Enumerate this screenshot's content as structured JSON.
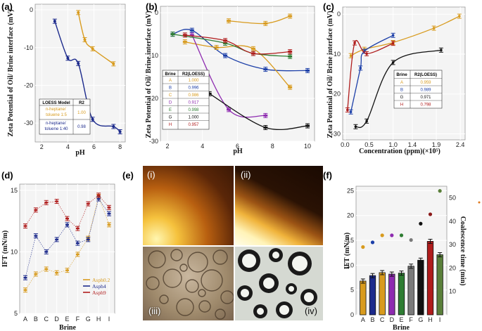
{
  "figure_letters": {
    "a": "(a)",
    "b": "(b)",
    "c": "(c)",
    "d": "(d)",
    "e": "(e)",
    "f": "(f)"
  },
  "micrograph_labels": {
    "i": "(i)",
    "ii": "(ii)",
    "iii": "(iii)",
    "iv": "(iv)"
  },
  "colors": {
    "orange": "#d89b1e",
    "navy": "#1c2a8c",
    "crimson": "#b01c1c",
    "green": "#2e7d32",
    "purple": "#8e2bb0",
    "black": "#111111",
    "blue": "#1c3fa8",
    "gray": "#7a7a7a",
    "light_blue": "#1f6fd6",
    "olive": "#5a7f3a",
    "dark_red": "#8b1a1a"
  },
  "chart_data": [
    {
      "id": "a",
      "type": "line",
      "ylabel": "Zeta Potential of Oil/ Brine interface (mV)",
      "xlabel": "pH",
      "xlim": [
        1.5,
        8.4
      ],
      "ylim": [
        -35,
        1.5
      ],
      "xticks": [
        "2",
        "4",
        "6",
        "8"
      ],
      "yticks": [
        "0",
        "-10",
        "-20",
        "-30"
      ],
      "legend_headers": [
        "LOESS Model",
        "R2"
      ],
      "series": [
        {
          "name": "n-heptane/ toluene 1:5",
          "r2": "1.00",
          "color": "orange",
          "x": [
            4.8,
            5.3,
            5.9,
            7.5
          ],
          "y": [
            -0.7,
            -7.9,
            -10.3,
            -14.3
          ]
        },
        {
          "name": "n-heptane/ toluene 1:40",
          "r2": "0.98",
          "color": "navy",
          "x": [
            3.0,
            4.0,
            4.8,
            5.9,
            7.5,
            8.0
          ],
          "y": [
            -3.0,
            -12.8,
            -14.2,
            -29.0,
            -30.9,
            -32.3
          ]
        }
      ]
    },
    {
      "id": "b",
      "type": "line",
      "ylabel": "Zeta Potential of Oil/ Brine interface (mV)",
      "xlabel": "pH",
      "xlim": [
        1.6,
        10.4
      ],
      "ylim": [
        -30,
        1.5
      ],
      "xticks": [
        "2",
        "4",
        "6",
        "8",
        "10"
      ],
      "yticks": [
        "0",
        "-10",
        "-20",
        "-30"
      ],
      "legend_headers": [
        "Brine",
        "R2(LOESS)"
      ],
      "series": [
        {
          "name": "A",
          "r2": "1.000",
          "color": "orange",
          "x": [
            5.5,
            7.6,
            9.0
          ],
          "y": [
            -1.9,
            -2.5,
            -0.8
          ]
        },
        {
          "name": "B",
          "r2": "0.996",
          "color": "blue",
          "x": [
            2.3,
            3.4,
            5.3,
            7.6,
            10.0
          ],
          "y": [
            -5.0,
            -4.1,
            -10.0,
            -13.2,
            -13.5
          ]
        },
        {
          "name": "C",
          "r2": "0.986",
          "color": "orange",
          "x": [
            3.0,
            4.8,
            6.9,
            9.0
          ],
          "y": [
            -6.8,
            -8.1,
            -8.4,
            -17.4
          ]
        },
        {
          "name": "D",
          "r2": "0.917",
          "color": "purple",
          "x": [
            3.4,
            5.5,
            7.6
          ],
          "y": [
            -5.2,
            -22.6,
            -24.0
          ]
        },
        {
          "name": "E",
          "r2": "0.998",
          "color": "green",
          "x": [
            2.3,
            5.3,
            6.9,
            9.0
          ],
          "y": [
            -5.0,
            -7.1,
            -9.5,
            -10.2
          ]
        },
        {
          "name": "G",
          "r2": "1.000",
          "color": "black",
          "x": [
            4.4,
            7.6,
            10.0
          ],
          "y": [
            -18.9,
            -26.8,
            -26.4
          ]
        },
        {
          "name": "H",
          "r2": "0.957",
          "color": "crimson",
          "x": [
            3.0,
            5.3,
            6.9,
            9.0
          ],
          "y": [
            -5.2,
            -6.5,
            -9.5,
            -9.1
          ]
        }
      ]
    },
    {
      "id": "c",
      "type": "line",
      "ylabel": "Zeta Potential of Oil/ Brine interface (mV)",
      "xlabel": "Concentration (ppm)(×10⁵)",
      "xlim": [
        -0.05,
        2.5
      ],
      "ylim": [
        -31.5,
        1.8
      ],
      "xticks": [
        "0.0",
        "0.5",
        "1.0",
        "1.4",
        "1.9",
        "2.4"
      ],
      "yticks": [
        "0",
        "-10",
        "-20",
        "-30"
      ],
      "legend_headers": [
        "Brine",
        "R2(LOESS)"
      ],
      "series": [
        {
          "name": "A",
          "r2": "0.959",
          "color": "orange",
          "x": [
            0.12,
            0.4,
            1.0,
            1.85,
            2.38
          ],
          "y": [
            -10.4,
            -8.8,
            -7.1,
            -3.5,
            -0.5
          ]
        },
        {
          "name": "B",
          "r2": "0.989",
          "color": "blue",
          "x": [
            0.12,
            0.32,
            0.4,
            1.0
          ],
          "y": [
            -24.5,
            -13.5,
            -9.3,
            -5.3
          ]
        },
        {
          "name": "G",
          "r2": "0.971",
          "color": "black",
          "x": [
            0.22,
            0.45,
            1.0,
            2.0
          ],
          "y": [
            -28.2,
            -26.8,
            -12.1,
            -9.0
          ]
        },
        {
          "name": "H",
          "r2": "0.798",
          "color": "crimson",
          "x": [
            0.05,
            0.2,
            0.45,
            1.0
          ],
          "y": [
            -24.0,
            -7.2,
            -9.9,
            -7.3
          ]
        }
      ]
    },
    {
      "id": "d",
      "type": "line",
      "ylabel": "IFT (mN/m)",
      "xlabel": "Brine",
      "categories": [
        "A",
        "B",
        "C",
        "D",
        "E",
        "F",
        "G",
        "H",
        "I"
      ],
      "ylim": [
        5,
        15.5
      ],
      "yticks": [
        "15",
        "10",
        "5"
      ],
      "series": [
        {
          "name": "Asph0.2",
          "color": "orange",
          "values": [
            6.9,
            8.2,
            8.6,
            8.3,
            8.5,
            9.8,
            11.1,
            14.5,
            12.2
          ]
        },
        {
          "name": "Asph4",
          "color": "navy",
          "values": [
            7.9,
            11.3,
            10.0,
            11.0,
            12.2,
            10.7,
            11.0,
            14.3,
            13.1
          ]
        },
        {
          "name": "Asph9",
          "color": "crimson",
          "values": [
            12.1,
            13.4,
            14.0,
            14.1,
            12.7,
            11.9,
            13.9,
            14.6,
            13.6
          ]
        }
      ]
    },
    {
      "id": "f",
      "type": "bar",
      "ylabel": "IFT (mN/m)",
      "y2label": "Coalescence time (min)",
      "xlabel": "Brine",
      "categories": [
        "A",
        "B",
        "C",
        "D",
        "E",
        "F",
        "G",
        "H",
        "I"
      ],
      "ylim": [
        0,
        25.9
      ],
      "y2lim": [
        0,
        55
      ],
      "yticks": [
        "0",
        "5",
        "10",
        "15",
        "20",
        "25"
      ],
      "y2ticks": [
        "10",
        "20",
        "30",
        "40",
        "50"
      ],
      "bar_colors": [
        "orange",
        "navy",
        "orange",
        "purple",
        "green",
        "gray",
        "black",
        "crimson",
        "olive"
      ],
      "values": [
        6.8,
        7.9,
        8.5,
        8.2,
        8.4,
        9.8,
        11.0,
        14.8,
        12.1
      ],
      "coalescence_times": [
        29,
        31,
        34,
        34,
        34,
        32,
        39,
        43,
        53
      ],
      "point_colors": [
        "orange",
        "blue",
        "orange",
        "purple",
        "green",
        "gray",
        "black",
        "dark_red",
        "olive"
      ]
    }
  ]
}
